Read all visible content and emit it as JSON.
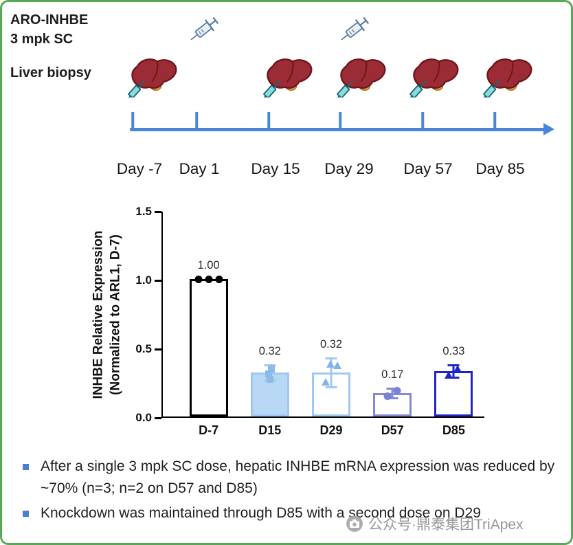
{
  "border_color": "#57a957",
  "timeline": {
    "treatment_line1": "ARO-INHBE",
    "treatment_line2": "3 mpk SC",
    "biopsy_label": "Liver biopsy",
    "days": [
      "Day -7",
      "Day 1",
      "Day 15",
      "Day 29",
      "Day 57",
      "Day 85"
    ],
    "injection_days": [
      "Day 1",
      "Day 29"
    ],
    "biopsy_days": [
      "Day -7",
      "Day 15",
      "Day 29",
      "Day 57",
      "Day 85"
    ],
    "arrow_color": "#4a86d8"
  },
  "chart_data": {
    "type": "bar",
    "categories": [
      "D-7",
      "D15",
      "D29",
      "D57",
      "D85"
    ],
    "values": [
      1.0,
      0.32,
      0.32,
      0.17,
      0.33
    ],
    "value_labels": [
      "1.00",
      "0.32",
      "0.32",
      "0.17",
      "0.33"
    ],
    "errors": [
      0,
      0.055,
      0.105,
      0.035,
      0.045
    ],
    "points": [
      [
        1.0,
        1.0,
        1.0
      ],
      [
        0.275,
        0.315,
        0.35
      ],
      [
        0.255,
        0.385,
        0.375
      ],
      [
        0.15,
        0.19
      ],
      [
        0.305,
        0.35
      ]
    ],
    "title": "",
    "xlabel": "",
    "ylabel_line1": "INHBE Relative Expression",
    "ylabel_line2": "(Normalized to ARL1, D-7)",
    "ylim": [
      0,
      1.5
    ],
    "yticks": [
      "0.0",
      "0.5",
      "1.0",
      "1.5"
    ],
    "grid": false,
    "legend": "none",
    "styles": [
      {
        "shape": "circle",
        "border": "#000000",
        "fill": "#ffffff",
        "marker": "#000000",
        "err": "#000000",
        "jitter": [
          -15,
          0,
          15
        ]
      },
      {
        "shape": "square",
        "border": "#9fc8f2",
        "fill": "#b9d8f6",
        "marker": "#8ab9ea",
        "err": "#9fc8f2",
        "jitter": [
          0,
          -2,
          2
        ]
      },
      {
        "shape": "triangle",
        "border": "#9fc8f2",
        "fill": "#ffffff",
        "marker": "#82b4e8",
        "err": "#9fc8f2",
        "jitter": [
          -8,
          -1,
          9
        ]
      },
      {
        "shape": "circle",
        "border": "#8289d8",
        "fill": "#ffffff",
        "marker": "#7a82d4",
        "err": "#8289d8",
        "jitter": [
          -7,
          7
        ]
      },
      {
        "shape": "triangle",
        "border": "#1f25c4",
        "fill": "#ffffff",
        "marker": "#1f25c4",
        "err": "#1f25c4",
        "jitter": [
          -7,
          6
        ]
      }
    ]
  },
  "bullets": [
    "After a single 3 mpk SC dose, hepatic INHBE mRNA expression was reduced by ~70% (n=3; n=2 on D57 and D85)",
    "Knockdown was maintained through D85 with a second dose on D29"
  ],
  "bullet_color": "#4a7fd0",
  "watermark": "公众号·鼎泰集团TriApex"
}
